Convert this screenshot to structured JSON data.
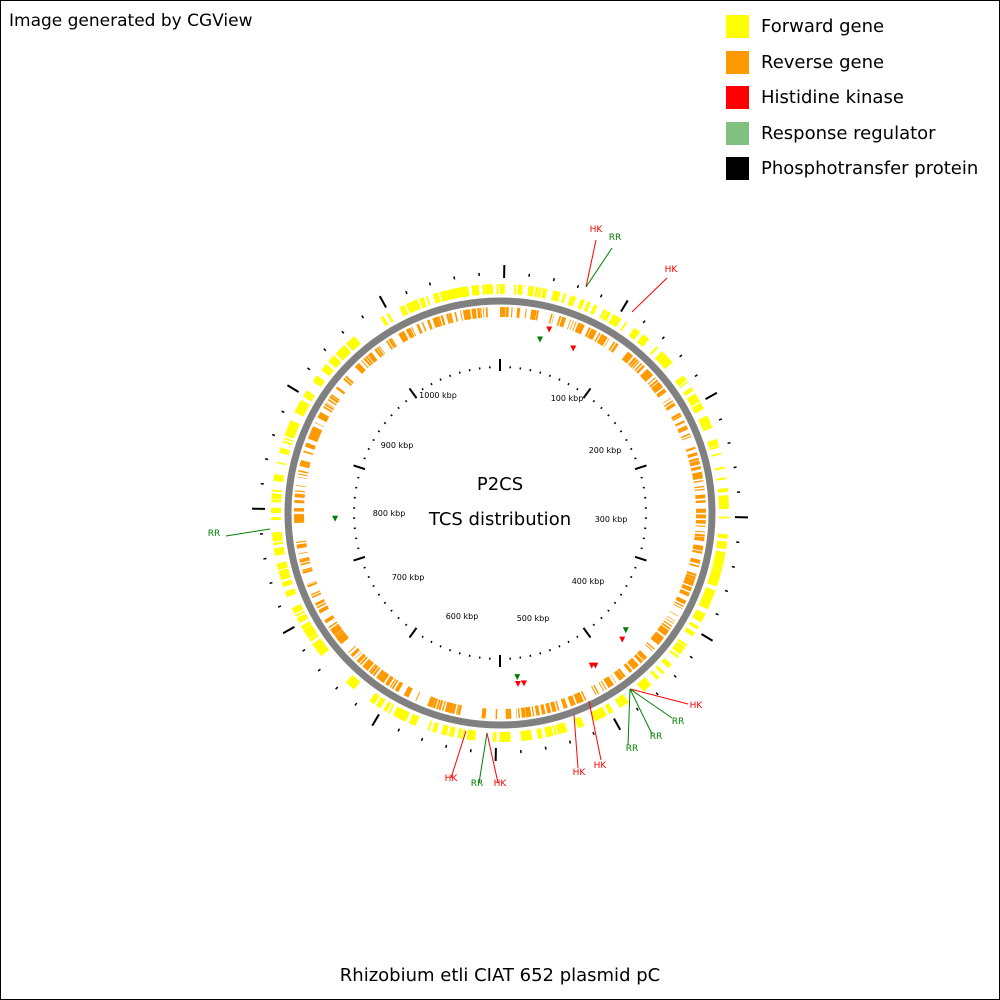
{
  "credit": "Image generated by CGView",
  "caption": "Rhizobium etli CIAT 652 plasmid pC",
  "center": {
    "line1": "P2CS",
    "line2": "TCS distribution"
  },
  "legend": [
    {
      "label": "Forward gene",
      "color": "#ffff00"
    },
    {
      "label": "Reverse gene",
      "color": "#ff9900"
    },
    {
      "label": "Histidine kinase",
      "color": "#ff0000"
    },
    {
      "label": "Response regulator",
      "color": "#80c080"
    },
    {
      "label": "Phosphotransfer protein",
      "color": "#000000"
    }
  ],
  "colors": {
    "hk": "#ff0000",
    "rr": "#008000",
    "backbone": "#808080"
  },
  "ruler": {
    "labels": [
      "100 kbp",
      "200 kbp",
      "300 kbp",
      "400 kbp",
      "500 kbp",
      "600 kbp",
      "700 kbp",
      "800 kbp",
      "900 kbp",
      "1000 kbp"
    ]
  },
  "features": [
    {
      "type": "HK",
      "label": "HK"
    },
    {
      "type": "RR",
      "label": "RR"
    },
    {
      "type": "HK",
      "label": "HK"
    },
    {
      "type": "RR",
      "label": "RR"
    },
    {
      "type": "HK",
      "label": "HK"
    },
    {
      "type": "RR",
      "label": "RR"
    },
    {
      "type": "RR",
      "label": "RR"
    },
    {
      "type": "HK",
      "label": "HK"
    },
    {
      "type": "HK",
      "label": "HK"
    },
    {
      "type": "HK",
      "label": "HK"
    },
    {
      "type": "RR",
      "label": "RR"
    },
    {
      "type": "HK",
      "label": "HK"
    },
    {
      "type": "RR",
      "label": "RR"
    }
  ]
}
